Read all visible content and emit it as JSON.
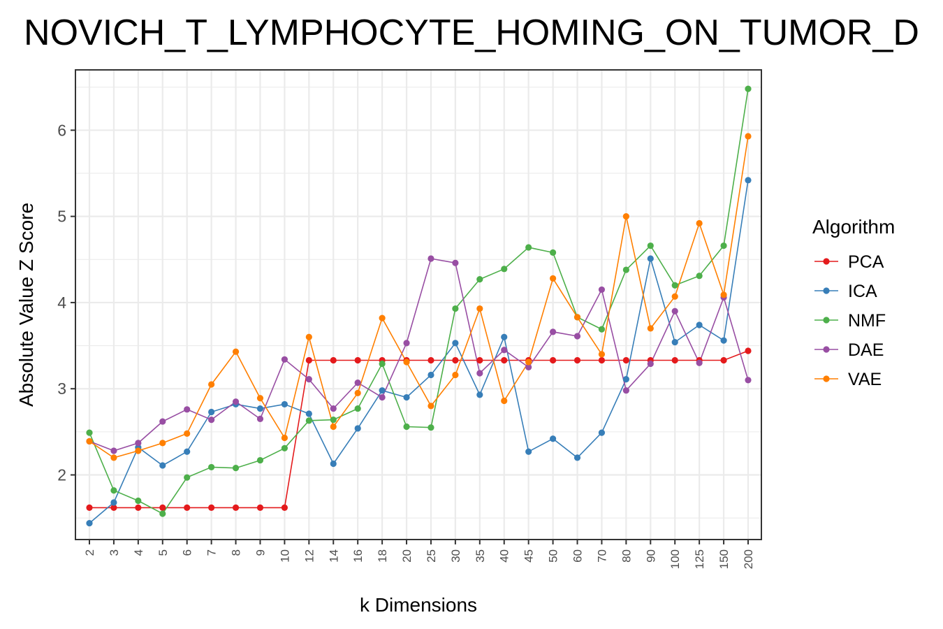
{
  "chart_data": {
    "type": "line",
    "title": "NOVICH_T_LYMPHOCYTE_HOMING_ON_TUMOR_D",
    "xlabel": "k Dimensions",
    "ylabel": "Absolute Value Z Score",
    "categories": [
      "2",
      "3",
      "4",
      "5",
      "6",
      "7",
      "8",
      "9",
      "10",
      "12",
      "14",
      "16",
      "18",
      "20",
      "25",
      "30",
      "35",
      "40",
      "45",
      "50",
      "60",
      "70",
      "80",
      "90",
      "100",
      "125",
      "150",
      "200"
    ],
    "ylim": [
      1.25,
      6.7
    ],
    "yticks": [
      "2",
      "3",
      "4",
      "5",
      "6"
    ],
    "grid": true,
    "legend": {
      "title": "Algorithm",
      "position": "right"
    },
    "series": [
      {
        "name": "PCA",
        "color": "#E41A1C",
        "values": [
          1.62,
          1.62,
          1.62,
          1.62,
          1.62,
          1.62,
          1.62,
          1.62,
          1.62,
          3.33,
          3.33,
          3.33,
          3.33,
          3.33,
          3.33,
          3.33,
          3.33,
          3.33,
          3.33,
          3.33,
          3.33,
          3.33,
          3.33,
          3.33,
          3.33,
          3.33,
          3.33,
          3.44
        ]
      },
      {
        "name": "ICA",
        "color": "#377EB8",
        "values": [
          1.44,
          1.68,
          2.32,
          2.11,
          2.27,
          2.73,
          2.82,
          2.77,
          2.82,
          2.71,
          2.13,
          2.54,
          2.98,
          2.9,
          3.16,
          3.53,
          2.93,
          3.6,
          2.27,
          2.42,
          2.2,
          2.49,
          3.11,
          4.51,
          3.54,
          3.74,
          3.56,
          5.42
        ]
      },
      {
        "name": "NMF",
        "color": "#4DAF4A",
        "values": [
          2.49,
          1.82,
          1.7,
          1.55,
          1.97,
          2.09,
          2.08,
          2.17,
          2.31,
          2.63,
          2.64,
          2.77,
          3.29,
          2.56,
          2.55,
          3.93,
          4.27,
          4.39,
          4.64,
          4.58,
          3.83,
          3.69,
          4.38,
          4.66,
          4.2,
          4.31,
          4.66,
          6.48
        ]
      },
      {
        "name": "DAE",
        "color": "#984EA3",
        "values": [
          2.39,
          2.28,
          2.37,
          2.62,
          2.76,
          2.64,
          2.85,
          2.65,
          3.34,
          3.11,
          2.77,
          3.07,
          2.9,
          3.53,
          4.51,
          4.46,
          3.18,
          3.45,
          3.25,
          3.66,
          3.61,
          4.15,
          2.98,
          3.29,
          3.9,
          3.3,
          4.06,
          3.1
        ]
      },
      {
        "name": "VAE",
        "color": "#FF7F00",
        "values": [
          2.39,
          2.2,
          2.28,
          2.37,
          2.48,
          3.05,
          3.43,
          2.89,
          2.43,
          3.6,
          2.56,
          2.95,
          3.82,
          3.31,
          2.8,
          3.16,
          3.93,
          2.86,
          3.31,
          4.28,
          3.83,
          3.4,
          5.0,
          3.7,
          4.07,
          4.92,
          4.09,
          5.93
        ]
      }
    ]
  }
}
